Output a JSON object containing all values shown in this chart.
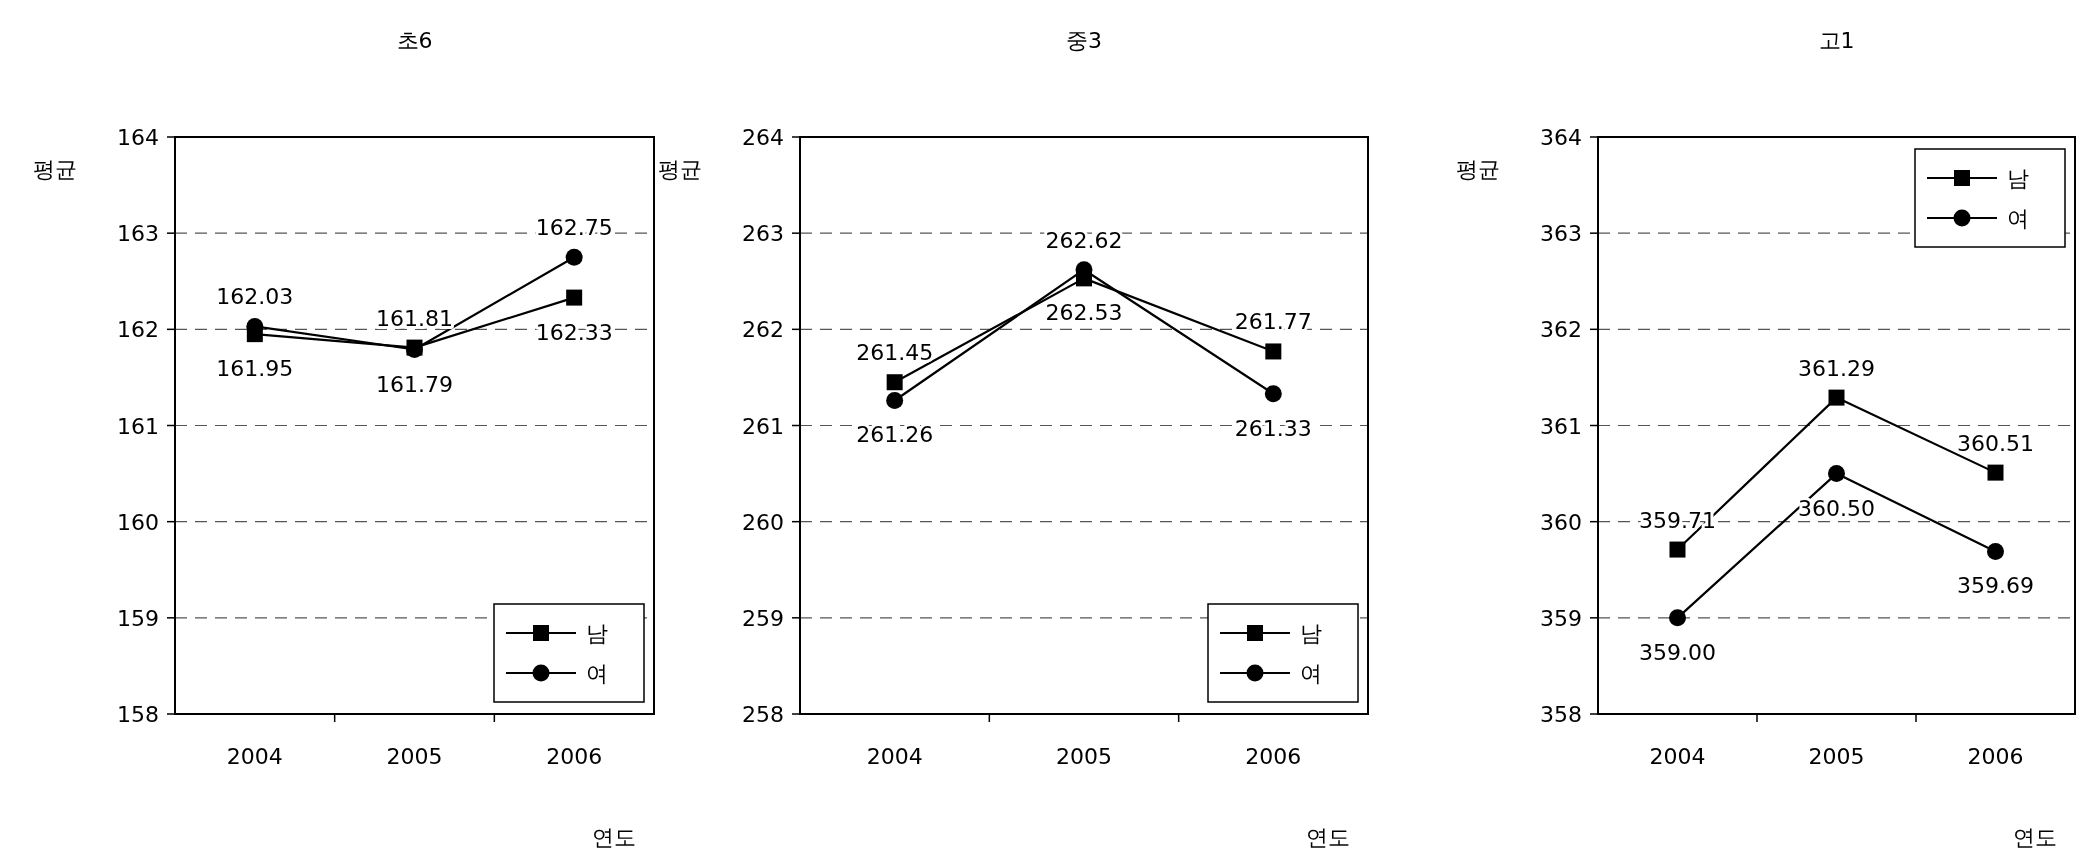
{
  "chart_data": [
    {
      "type": "line",
      "title": "초6",
      "xlabel": "연도",
      "ylabel": "평균",
      "categories": [
        "2004",
        "2005",
        "2006"
      ],
      "series": [
        {
          "name": "남",
          "color": "#000000",
          "marker": "square",
          "values": [
            161.95,
            161.81,
            162.33
          ],
          "value_labels": [
            "161.95",
            "161.81",
            "162.33"
          ]
        },
        {
          "name": "여",
          "color": "#000000",
          "marker": "circle",
          "values": [
            162.03,
            161.79,
            162.75
          ],
          "value_labels": [
            "162.03",
            "161.79",
            "162.75"
          ]
        }
      ],
      "ylim": [
        158,
        164
      ],
      "yticks": [
        158,
        159,
        160,
        161,
        162,
        163,
        164
      ],
      "grid": "y",
      "legend": "bottom right",
      "line_style": "solid"
    },
    {
      "type": "line",
      "title": "중3",
      "xlabel": "연도",
      "ylabel": "평균",
      "categories": [
        "2004",
        "2005",
        "2006"
      ],
      "series": [
        {
          "name": "남",
          "color": "#000000",
          "marker": "square",
          "values": [
            261.45,
            262.53,
            261.77
          ],
          "value_labels": [
            "261.45",
            "262.53",
            "261.77"
          ]
        },
        {
          "name": "여",
          "color": "#000000",
          "marker": "circle",
          "values": [
            261.26,
            262.62,
            261.33
          ],
          "value_labels": [
            "261.26",
            "262.62",
            "261.33"
          ]
        }
      ],
      "ylim": [
        258,
        264
      ],
      "yticks": [
        258,
        259,
        260,
        261,
        262,
        263,
        264
      ],
      "grid": "y",
      "legend": "bottom right",
      "line_style": "solid"
    },
    {
      "type": "line",
      "title": "고1",
      "xlabel": "연도",
      "ylabel": "평균",
      "categories": [
        "2004",
        "2005",
        "2006"
      ],
      "series": [
        {
          "name": "남",
          "color": "#000000",
          "marker": "square",
          "values": [
            359.71,
            361.29,
            360.51
          ],
          "value_labels": [
            "359.71",
            "361.29",
            "360.51"
          ]
        },
        {
          "name": "여",
          "color": "#000000",
          "marker": "circle",
          "values": [
            359.0,
            360.5,
            359.69
          ],
          "value_labels": [
            "359.00",
            "360.50",
            "359.69"
          ]
        }
      ],
      "ylim": [
        358,
        364
      ],
      "yticks": [
        358,
        359,
        360,
        361,
        362,
        363,
        364
      ],
      "grid": "y",
      "legend": "top right",
      "line_style": "solid"
    }
  ]
}
